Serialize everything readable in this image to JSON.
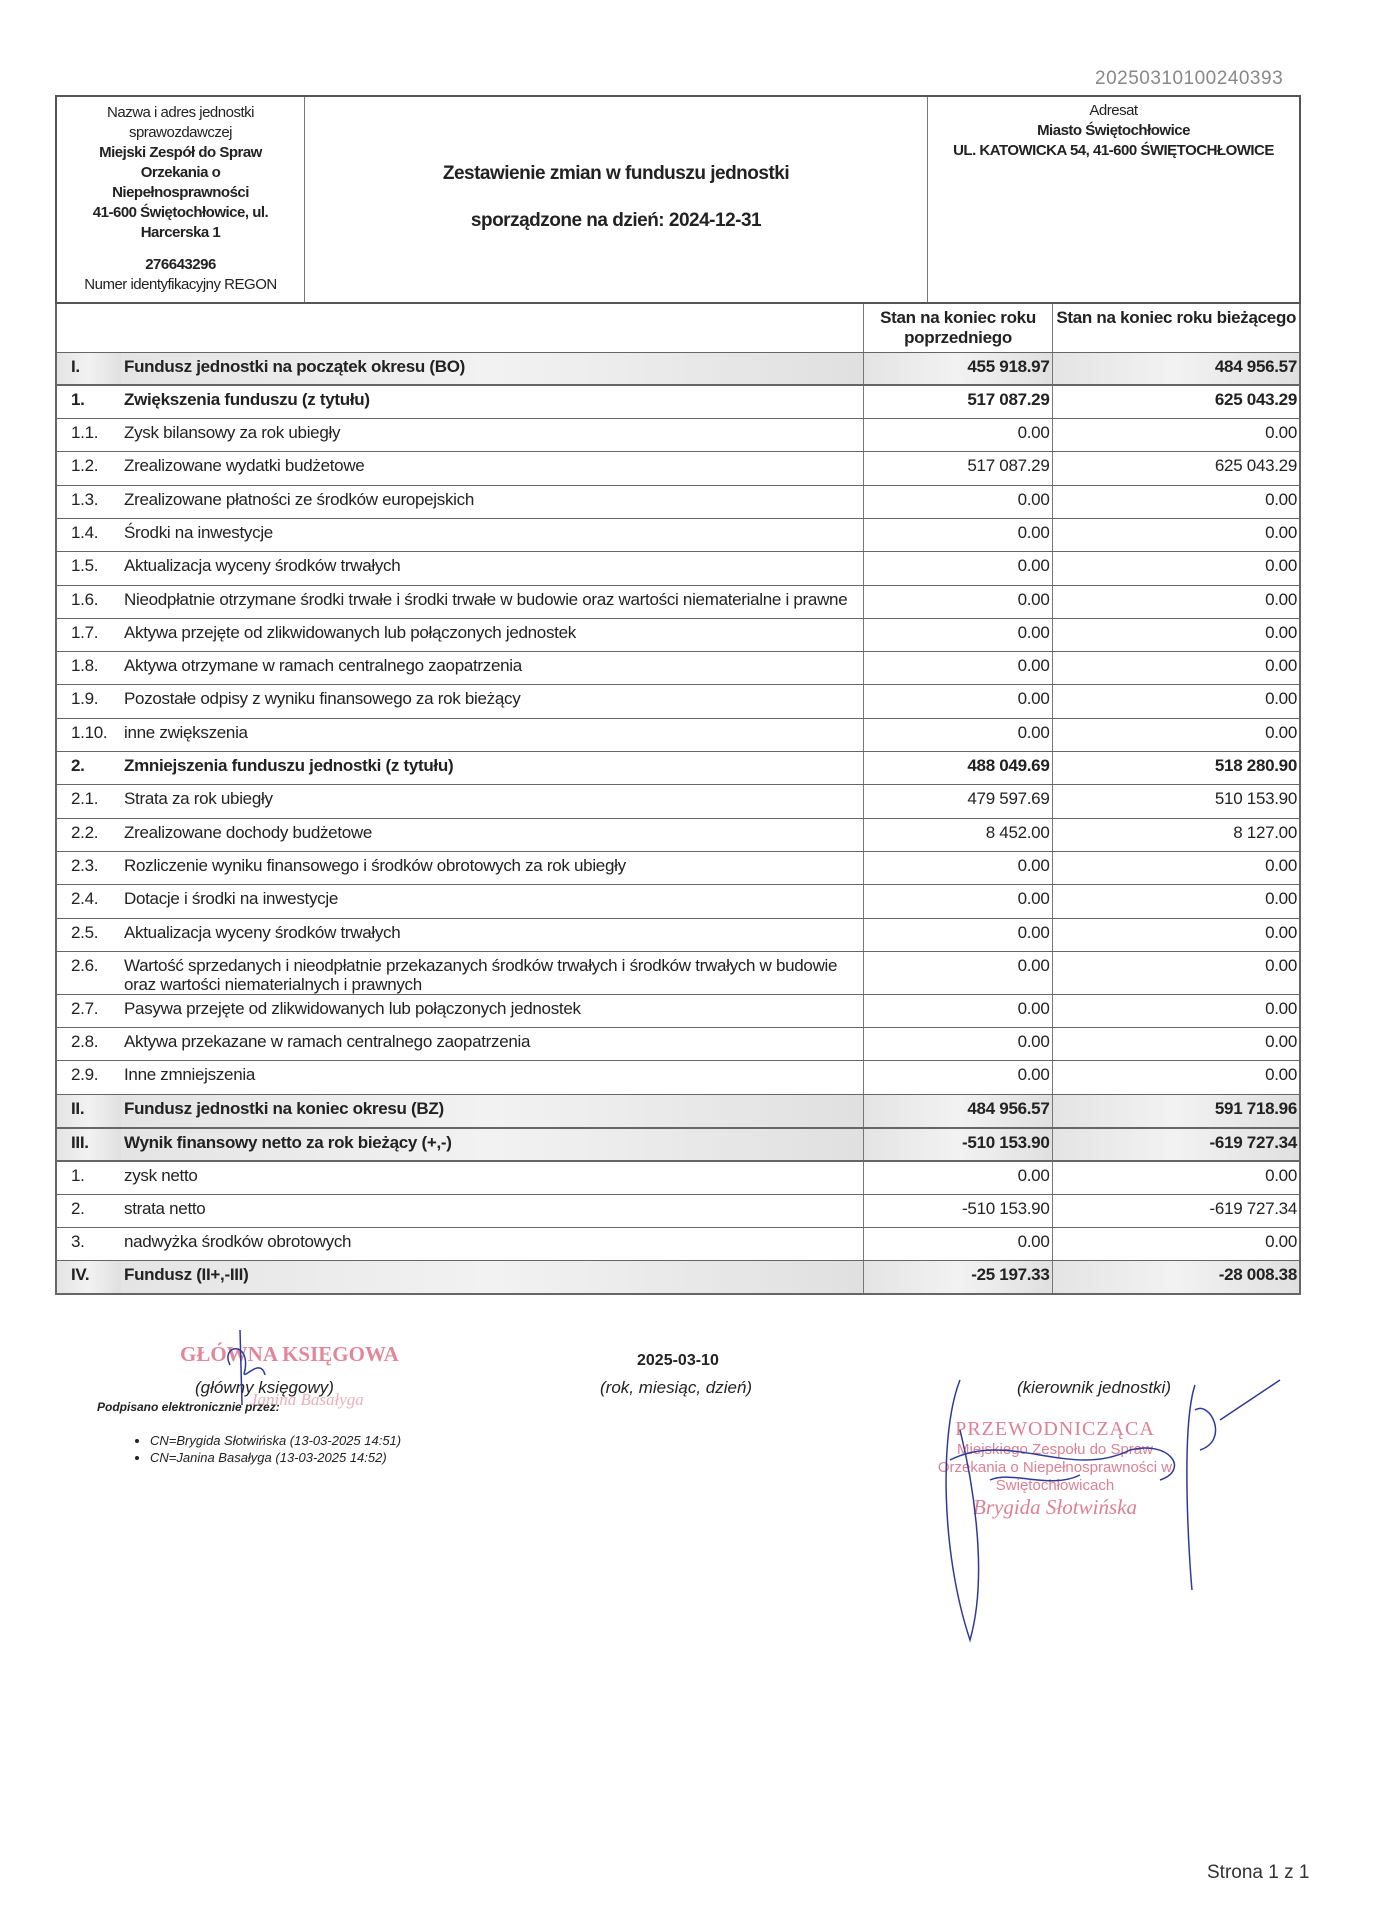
{
  "document_id": "20250310100240393",
  "unit": {
    "label1": "Nazwa i adres jednostki sprawozdawczej",
    "name": "Miejski Zespół do Spraw Orzekania o Niepełnosprawności",
    "address": "41-600 Świętochłowice, ul. Harcerska 1",
    "regon": "276643296",
    "regon_label": "Numer identyfikacyjny REGON"
  },
  "title": "Zestawienie zmian w funduszu jednostki",
  "date_line": "sporządzone na dzień: 2024-12-31",
  "addressee": {
    "label": "Adresat",
    "name": "Miasto Świętochłowice",
    "address": "UL. KATOWICKA 54, 41-600 ŚWIĘTOCHŁOWICE"
  },
  "columns": [
    "Stan na koniec roku poprzedniego",
    "Stan na koniec roku bieżącego"
  ],
  "rows": [
    {
      "no": "I.",
      "label": "Fundusz jednostki na początek okresu (BO)",
      "prev": "455 918.97",
      "curr": "484 956.57",
      "style": "shade"
    },
    {
      "no": "1.",
      "label": "Zwiększenia funduszu (z tytułu)",
      "prev": "517 087.29",
      "curr": "625 043.29",
      "style": "bold"
    },
    {
      "no": "1.1.",
      "label": "Zysk bilansowy za rok ubiegły",
      "prev": "0.00",
      "curr": "0.00"
    },
    {
      "no": "1.2.",
      "label": "Zrealizowane wydatki budżetowe",
      "prev": "517 087.29",
      "curr": "625 043.29"
    },
    {
      "no": "1.3.",
      "label": "Zrealizowane płatności ze środków europejskich",
      "prev": "0.00",
      "curr": "0.00"
    },
    {
      "no": "1.4.",
      "label": "Środki na inwestycje",
      "prev": "0.00",
      "curr": "0.00"
    },
    {
      "no": "1.5.",
      "label": "Aktualizacja wyceny środków trwałych",
      "prev": "0.00",
      "curr": "0.00"
    },
    {
      "no": "1.6.",
      "label": "Nieodpłatnie otrzymane środki trwałe i środki trwałe w budowie oraz wartości niematerialne i prawne",
      "prev": "0.00",
      "curr": "0.00"
    },
    {
      "no": "1.7.",
      "label": "Aktywa przejęte od zlikwidowanych lub połączonych jednostek",
      "prev": "0.00",
      "curr": "0.00"
    },
    {
      "no": "1.8.",
      "label": "Aktywa otrzymane w ramach centralnego zaopatrzenia",
      "prev": "0.00",
      "curr": "0.00"
    },
    {
      "no": "1.9.",
      "label": "Pozostałe odpisy z wyniku finansowego za rok bieżący",
      "prev": "0.00",
      "curr": "0.00"
    },
    {
      "no": "1.10.",
      "label": "inne zwiększenia",
      "prev": "0.00",
      "curr": "0.00"
    },
    {
      "no": "2.",
      "label": "Zmniejszenia funduszu jednostki (z tytułu)",
      "prev": "488 049.69",
      "curr": "518 280.90",
      "style": "bold"
    },
    {
      "no": "2.1.",
      "label": "Strata za rok ubiegły",
      "prev": "479 597.69",
      "curr": "510 153.90"
    },
    {
      "no": "2.2.",
      "label": "Zrealizowane dochody budżetowe",
      "prev": "8 452.00",
      "curr": "8 127.00"
    },
    {
      "no": "2.3.",
      "label": "Rozliczenie wyniku finansowego i środków obrotowych za rok ubiegły",
      "prev": "0.00",
      "curr": "0.00"
    },
    {
      "no": "2.4.",
      "label": "Dotacje i środki na inwestycje",
      "prev": "0.00",
      "curr": "0.00"
    },
    {
      "no": "2.5.",
      "label": "Aktualizacja wyceny środków trwałych",
      "prev": "0.00",
      "curr": "0.00"
    },
    {
      "no": "2.6.",
      "label": "Wartość sprzedanych i nieodpłatnie przekazanych środków trwałych i środków trwałych w budowie oraz wartości niematerialnych i prawnych",
      "prev": "0.00",
      "curr": "0.00",
      "style": "tall"
    },
    {
      "no": "2.7.",
      "label": "Pasywa przejęte od zlikwidowanych lub połączonych jednostek",
      "prev": "0.00",
      "curr": "0.00"
    },
    {
      "no": "2.8.",
      "label": "Aktywa przekazane w ramach centralnego zaopatrzenia",
      "prev": "0.00",
      "curr": "0.00"
    },
    {
      "no": "2.9.",
      "label": "Inne zmniejszenia",
      "prev": "0.00",
      "curr": "0.00"
    },
    {
      "no": "II.",
      "label": "Fundusz jednostki na koniec okresu (BZ)",
      "prev": "484 956.57",
      "curr": "591 718.96",
      "style": "shade"
    },
    {
      "no": "III.",
      "label": "Wynik finansowy netto za rok bieżący (+,-)",
      "prev": "-510 153.90",
      "curr": "-619 727.34",
      "style": "shade"
    },
    {
      "no": "1.",
      "label": "zysk netto",
      "prev": "0.00",
      "curr": "0.00"
    },
    {
      "no": "2.",
      "label": "strata netto",
      "prev": "-510 153.90",
      "curr": "-619 727.34"
    },
    {
      "no": "3.",
      "label": "nadwyżka środków obrotowych",
      "prev": "0.00",
      "curr": "0.00"
    },
    {
      "no": "IV.",
      "label": "Fundusz (II+,-III)",
      "prev": "-25 197.33",
      "curr": "-28 008.38",
      "style": "shade"
    }
  ],
  "signatures": {
    "accountant_label": "(główny księgowy)",
    "signed_by": "Podpisano elektronicznie przez:",
    "signers": [
      "CN=Brygida Słotwińska (13-03-2025 14:51)",
      "CN=Janina Basałyga (13-03-2025 14:52)"
    ],
    "date": "2025-03-10",
    "date_label": "(rok, miesiąc, dzień)",
    "head_label": "(kierownik jednostki)"
  },
  "stamps": {
    "accountant": "GŁÓWNA KSIĘGOWA",
    "accountant_name": "Janina Basałyga",
    "chair_title": "PRZEWODNICZĄCA",
    "chair_unit": "Miejskiego Zespołu do Spraw Orzekania o Niepełnosprawności w Świętochłowicach",
    "chair_name": "Brygida Słotwińska"
  },
  "page": "Strona 1 z 1"
}
